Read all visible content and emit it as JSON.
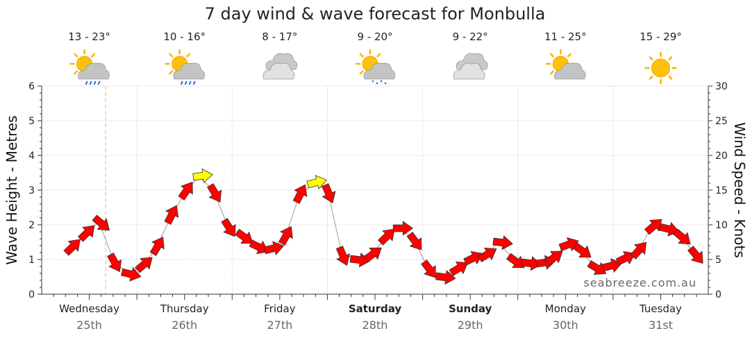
{
  "chart_data": {
    "type": "line",
    "title": "7 day wind & wave forecast for Monbulla",
    "ylabel_left": "Wave Height - Metres",
    "ylabel_right": "Wind Speed - Knots",
    "ylim_left": [
      0,
      6
    ],
    "ylim_right": [
      0,
      30
    ],
    "yticks_left": [
      "0",
      "1",
      "2",
      "3",
      "4",
      "5",
      "6"
    ],
    "yticks_right": [
      "0",
      "5",
      "10",
      "15",
      "20",
      "25",
      "30"
    ],
    "days": [
      {
        "name": "Wednesday",
        "date": "25th",
        "temp": "13 - 23°",
        "icon": "sun-cloud-rain-icon",
        "bold": false
      },
      {
        "name": "Thursday",
        "date": "26th",
        "temp": "10 - 16°",
        "icon": "sun-cloud-rain-icon",
        "bold": false
      },
      {
        "name": "Friday",
        "date": "27th",
        "temp": "8 - 17°",
        "icon": "cloud-icon",
        "bold": false
      },
      {
        "name": "Saturday",
        "date": "28th",
        "temp": "9 - 20°",
        "icon": "sun-cloud-showers-icon",
        "bold": true
      },
      {
        "name": "Sunday",
        "date": "29th",
        "temp": "9 - 22°",
        "icon": "cloud-icon",
        "bold": true
      },
      {
        "name": "Monday",
        "date": "30th",
        "temp": "11 - 25°",
        "icon": "sun-cloud-icon",
        "bold": false
      },
      {
        "name": "Tuesday",
        "date": "31st",
        "temp": "15 - 29°",
        "icon": "sun-icon",
        "bold": false
      }
    ],
    "wind_series": {
      "name": "Wind Speed - Knots",
      "x_days": [
        0.3,
        0.45,
        0.6,
        0.75,
        0.9,
        1.05,
        1.2,
        1.35,
        1.5,
        1.65,
        1.8,
        1.95,
        2.1,
        2.25,
        2.4,
        2.55,
        2.7,
        2.85,
        3.0,
        3.15,
        3.3,
        3.45,
        3.6,
        3.75,
        3.9,
        4.05,
        4.2,
        4.35,
        4.5,
        4.65,
        4.8,
        4.95,
        5.1,
        5.25,
        5.35,
        5.5,
        5.65,
        5.8,
        5.95,
        6.1,
        6.25,
        6.4,
        6.55,
        6.7,
        6.85
      ],
      "knots": [
        6.5,
        8.5,
        10.5,
        5,
        3,
        4,
        6.5,
        11,
        14.5,
        17,
        15,
        10,
        8.5,
        7,
        6.5,
        8,
        14,
        16,
        15,
        6,
        5,
        5.5,
        8,
        9.5,
        8,
        4,
        2.5,
        3.5,
        5,
        5.5,
        7.5,
        5,
        4.5,
        4.5,
        5,
        7,
        6.5,
        4,
        4,
        5,
        6,
        9.5,
        9.5,
        8.5,
        6
      ]
    },
    "wind_color_scale": [
      {
        "max_knots": 15,
        "color": "#ff0000"
      },
      {
        "max_knots": 20,
        "color": "#ffff00"
      }
    ],
    "watermark": "seabreeze.com.au"
  }
}
